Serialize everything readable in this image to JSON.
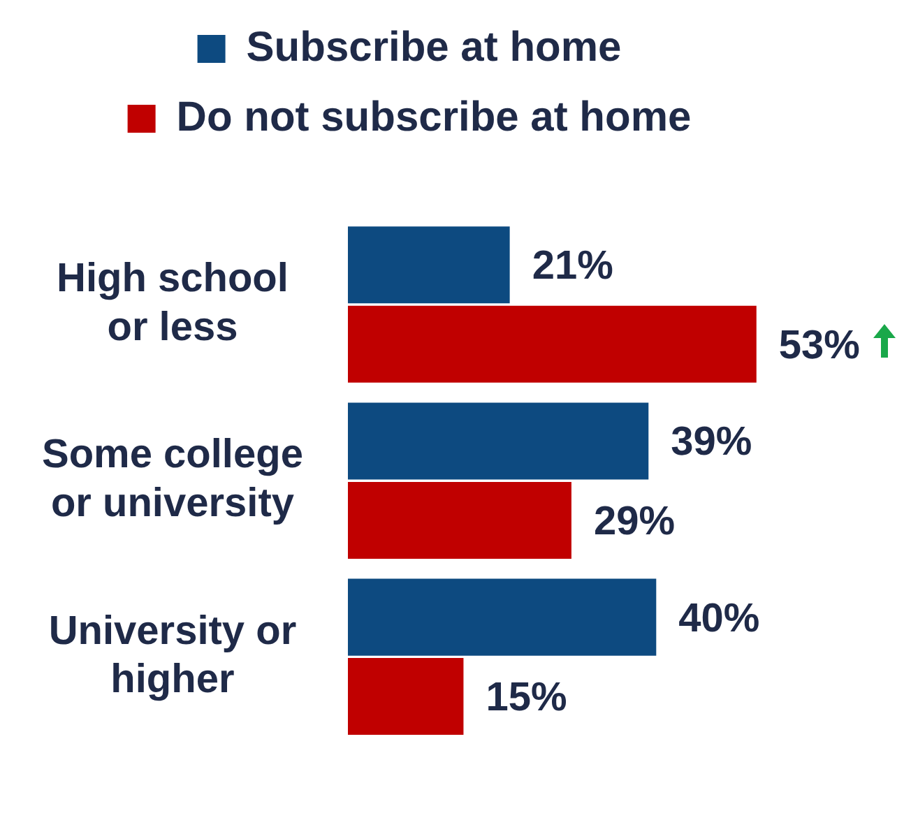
{
  "chart_data": {
    "type": "bar",
    "orientation": "horizontal",
    "legend": "top",
    "categories": [
      "High school or less",
      "Some college or university",
      "University or higher"
    ],
    "series": [
      {
        "name": "Subscribe at home",
        "color": "#0d4a80",
        "values": [
          21,
          39,
          40
        ],
        "value_labels": [
          "21%",
          "39%",
          "40%"
        ]
      },
      {
        "name": "Do not subscribe at home",
        "color": "#c00000",
        "values": [
          53,
          29,
          15
        ],
        "value_labels": [
          "53%",
          "29%",
          "15%"
        ]
      }
    ],
    "tick_labels": "y"
  }
}
